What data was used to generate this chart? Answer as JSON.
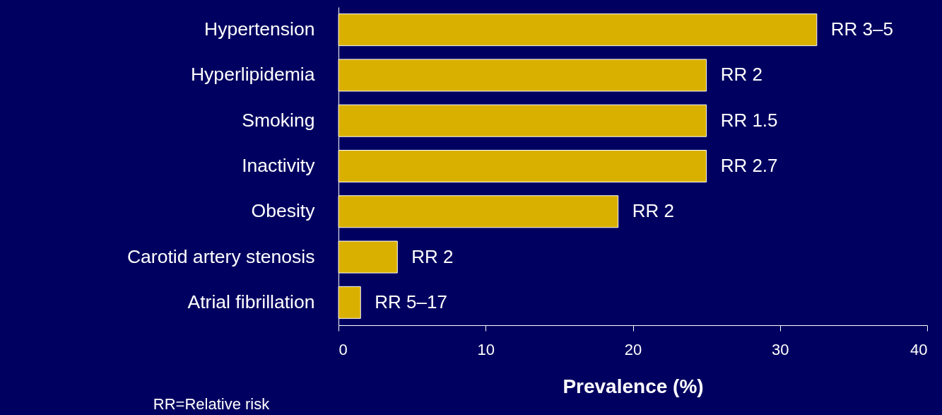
{
  "chart_data": {
    "type": "bar",
    "orientation": "horizontal",
    "xlabel": "Prevalence (%)",
    "categories": [
      "Hypertension",
      "Hyperlipidemia",
      "Smoking",
      "Inactivity",
      "Obesity",
      "Carotid artery stenosis",
      "Atrial fibrillation"
    ],
    "values": [
      32.5,
      25,
      25,
      25,
      19,
      4,
      1.5
    ],
    "value_labels": [
      "RR 3–5",
      "RR 2",
      "RR 1.5",
      "RR 2.7",
      "RR 2",
      "RR 2",
      "RR 5–17"
    ],
    "color": "#d9b000",
    "xlim": [
      0,
      40
    ],
    "xticks": [
      0,
      10,
      20,
      30,
      40
    ],
    "grid": false,
    "annotations": [
      "RR=Relative risk"
    ]
  }
}
